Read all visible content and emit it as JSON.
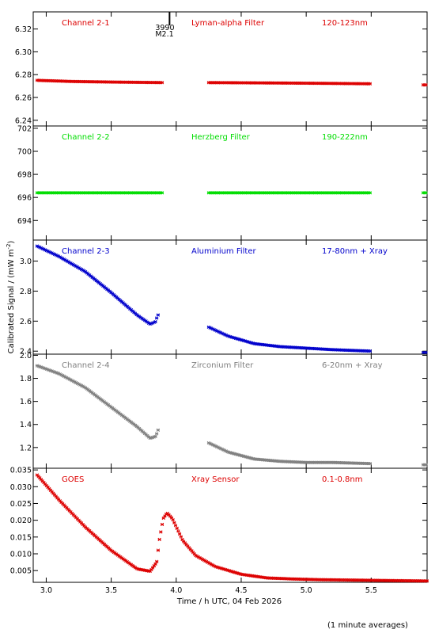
{
  "figure": {
    "ylabel_html": "Calibrated Signal  / (mW m",
    "ylabel_sup": "-2",
    "ylabel_tail": ")",
    "xlabel": "Time / h UTC, 04 Feb 2026",
    "footnote": "(1 minute averages)",
    "marker_label_top": "3990",
    "marker_label_bottom": "M2.1",
    "marker_x": 3.9
  },
  "chart_data": [
    {
      "type": "scatter",
      "channel": "Channel 2-1",
      "filter": "Lyman-alpha Filter",
      "band": "120-123nm",
      "color": "#dd0000",
      "ylim": [
        6.235,
        6.335
      ],
      "yticks": [
        6.24,
        6.26,
        6.28,
        6.3,
        6.32
      ],
      "ytick_labels": [
        "6.24",
        "6.26",
        "6.28",
        "6.30",
        "6.32"
      ],
      "segments": [
        {
          "x": [
            2.93,
            3.2,
            3.5,
            3.9
          ],
          "y": [
            6.275,
            6.274,
            6.2735,
            6.273
          ]
        },
        {
          "x": [
            4.25,
            4.6,
            5.0,
            5.5
          ],
          "y": [
            6.273,
            6.2728,
            6.2725,
            6.272
          ]
        },
        {
          "x": [
            5.9,
            5.93
          ],
          "y": [
            6.271,
            6.271
          ]
        }
      ]
    },
    {
      "type": "scatter",
      "channel": "Channel 2-2",
      "filter": "Herzberg Filter",
      "band": "190-222nm",
      "color": "#00dd00",
      "ylim": [
        692.3,
        702.2
      ],
      "yticks": [
        694,
        696,
        698,
        700,
        702
      ],
      "ytick_labels": [
        "694",
        "696",
        "698",
        "700",
        "702"
      ],
      "segments": [
        {
          "x": [
            2.93,
            3.9
          ],
          "y": [
            696.4,
            696.4
          ]
        },
        {
          "x": [
            4.25,
            5.5
          ],
          "y": [
            696.4,
            696.4
          ]
        },
        {
          "x": [
            5.9,
            5.93
          ],
          "y": [
            696.4,
            696.4
          ]
        }
      ]
    },
    {
      "type": "scatter",
      "channel": "Channel 2-3",
      "filter": "Aluminium Filter",
      "band": "17-80nm + Xray",
      "color": "#0000cc",
      "ylim": [
        2.38,
        3.14
      ],
      "yticks": [
        2.4,
        2.6,
        2.8,
        3.0
      ],
      "ytick_labels": [
        "2.4",
        "2.6",
        "2.8",
        "3.0"
      ],
      "segments": [
        {
          "x": [
            2.93,
            3.1,
            3.3,
            3.5,
            3.7,
            3.8,
            3.85
          ],
          "y": [
            3.1,
            3.03,
            2.93,
            2.79,
            2.64,
            2.58,
            2.6
          ]
        },
        {
          "x": [
            3.85,
            3.86,
            3.87
          ],
          "y": [
            2.62,
            2.64,
            2.67
          ]
        },
        {
          "x": [
            4.25,
            4.4,
            4.6,
            4.8,
            5.0,
            5.2,
            5.5
          ],
          "y": [
            2.56,
            2.5,
            2.45,
            2.43,
            2.42,
            2.41,
            2.4
          ]
        },
        {
          "x": [
            5.9,
            5.93
          ],
          "y": [
            2.39,
            2.39
          ]
        }
      ]
    },
    {
      "type": "scatter",
      "channel": "Channel 2-4",
      "filter": "Zirconium Filter",
      "band": "6-20nm + Xray",
      "color": "#808080",
      "ylim": [
        1.02,
        2.01
      ],
      "yticks": [
        1.2,
        1.4,
        1.6,
        1.8,
        2.0
      ],
      "ytick_labels": [
        "1.2",
        "1.4",
        "1.6",
        "1.8",
        "2.0"
      ],
      "segments": [
        {
          "x": [
            2.93,
            3.1,
            3.3,
            3.5,
            3.7,
            3.8,
            3.85
          ],
          "y": [
            1.91,
            1.84,
            1.72,
            1.55,
            1.38,
            1.28,
            1.3
          ]
        },
        {
          "x": [
            3.85,
            3.86,
            3.87
          ],
          "y": [
            1.32,
            1.35,
            1.39
          ]
        },
        {
          "x": [
            4.25,
            4.4,
            4.6,
            4.8,
            5.0,
            5.2,
            5.5
          ],
          "y": [
            1.24,
            1.16,
            1.1,
            1.08,
            1.07,
            1.07,
            1.06
          ]
        },
        {
          "x": [
            5.9,
            5.93
          ],
          "y": [
            1.05,
            1.05
          ]
        }
      ]
    },
    {
      "type": "scatter",
      "channel": "GOES",
      "filter": "Xray Sensor",
      "band": "0.1-0.8nm",
      "color": "#dd0000",
      "ylim": [
        0.0015,
        0.0355
      ],
      "yticks": [
        0.005,
        0.01,
        0.015,
        0.02,
        0.025,
        0.03,
        0.035
      ],
      "ytick_labels": [
        "0.005",
        "0.010",
        "0.015",
        "0.020",
        "0.025",
        "0.030",
        "0.035"
      ],
      "segments": [
        {
          "x": [
            2.93,
            3.1,
            3.3,
            3.5,
            3.7,
            3.8,
            3.85,
            3.87,
            3.9,
            3.93,
            3.97,
            4.05,
            4.15,
            4.3,
            4.5,
            4.7,
            4.9,
            5.1,
            5.3,
            5.5,
            5.7,
            5.93
          ],
          "y": [
            0.0335,
            0.026,
            0.018,
            0.011,
            0.0055,
            0.0048,
            0.0075,
            0.014,
            0.0205,
            0.0222,
            0.0205,
            0.014,
            0.0095,
            0.0062,
            0.0039,
            0.0028,
            0.0025,
            0.0023,
            0.0022,
            0.0021,
            0.002,
            0.0019
          ]
        }
      ]
    }
  ],
  "x_axis": {
    "xlim": [
      2.9,
      5.93
    ],
    "ticks": [
      3.0,
      3.5,
      4.0,
      4.5,
      5.0,
      5.5
    ],
    "tick_labels": [
      "3.0",
      "3.5",
      "4.0",
      "4.5",
      "5.0",
      "5.5"
    ]
  }
}
